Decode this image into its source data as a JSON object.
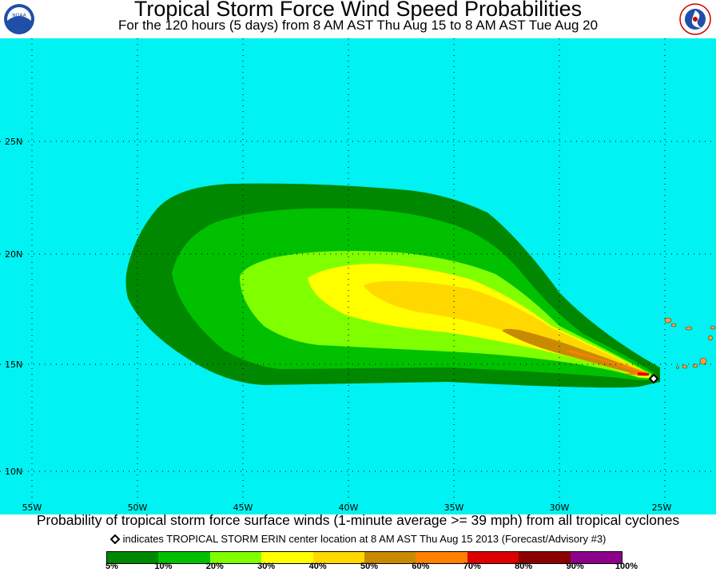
{
  "header": {
    "title": "Tropical Storm Force Wind Speed Probabilities",
    "subtitle": "For the 120 hours (5 days) from 8 AM AST Thu Aug 15 to 8 AM AST Tue Aug 20",
    "left_logo": "noaa-logo",
    "right_logo": "national-weather-service-logo"
  },
  "map": {
    "ocean_color": "#00f2f2",
    "lat_labels": [
      "25N",
      "20N",
      "15N",
      "10N"
    ],
    "lon_labels": [
      "55W",
      "50W",
      "45W",
      "40W",
      "35W",
      "30W",
      "25W"
    ],
    "storm_marker": "diamond-icon"
  },
  "footer": {
    "caption": "Probability of tropical storm force surface winds (1-minute average >= 39 mph) from all tropical cyclones",
    "note": "indicates TROPICAL STORM ERIN center location at 8 AM AST Thu Aug 15 2013 (Forecast/Advisory #3)"
  },
  "legend": {
    "colors": [
      "#008800",
      "#00c000",
      "#80ff00",
      "#ffff00",
      "#ffd800",
      "#c88a00",
      "#ff8000",
      "#dd0000",
      "#8b0000",
      "#8c008c"
    ],
    "labels": [
      "5%",
      "10%",
      "20%",
      "30%",
      "40%",
      "50%",
      "60%",
      "70%",
      "80%",
      "90%",
      "100%"
    ]
  }
}
